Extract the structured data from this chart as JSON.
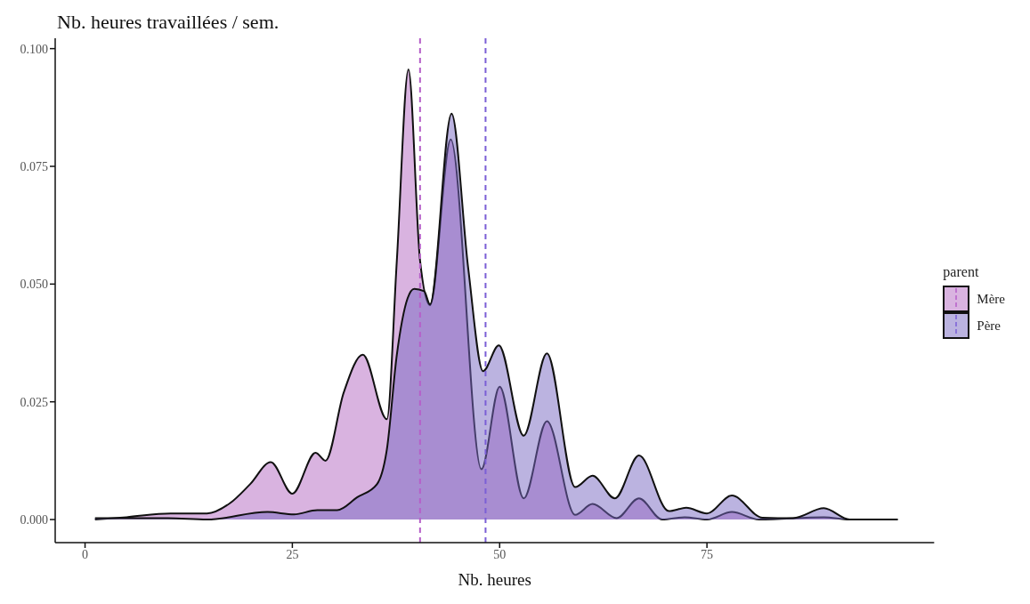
{
  "chart_data": {
    "type": "area",
    "title": "Nb. heures travaillées / sem.",
    "xlabel": "Nb. heures",
    "legend_title": "parent",
    "legend": "right",
    "xlim": [
      -3.6,
      102.4
    ],
    "xticks": [
      0,
      25,
      50,
      75
    ],
    "ylim": [
      -0.0049,
      0.1022
    ],
    "yticks": [
      {
        "value": 0,
        "label": "0.000"
      },
      {
        "value": 0.025,
        "label": "0.025"
      },
      {
        "value": 0.05,
        "label": "0.050"
      },
      {
        "value": 0.075,
        "label": "0.075"
      },
      {
        "value": 0.1,
        "label": "0.100"
      }
    ],
    "series": [
      {
        "name": "Mère",
        "color": "#b367c1",
        "x": [
          1.2,
          5,
          10.3,
          14.7,
          17.5,
          19.9,
          22.4,
          25,
          27.8,
          29,
          31.2,
          33.5,
          36.4,
          37.6,
          39,
          40.4,
          41.6,
          44.1,
          47.8,
          50,
          52.9,
          55.7,
          59.1,
          61.2,
          64.1,
          66.8,
          69.6,
          72.3,
          75,
          78,
          81.3,
          89.1,
          92.2,
          98
        ],
        "values": [
          0,
          0.0005,
          0.0013,
          0.0013,
          0.0035,
          0.0075,
          0.0122,
          0.0055,
          0.0142,
          0.0125,
          0.027,
          0.035,
          0.0213,
          0.055,
          0.0956,
          0.055,
          0.0455,
          0.0807,
          0.0107,
          0.0282,
          0.0045,
          0.0209,
          0.001,
          0.0033,
          0.0003,
          0.0045,
          0,
          0.0005,
          0,
          0.0016,
          0,
          0.0005,
          0,
          0
        ]
      },
      {
        "name": "Père",
        "color": "#7767c1",
        "x": [
          1.2,
          10,
          14.7,
          22,
          25.2,
          28,
          30.4,
          32.8,
          35.2,
          36.4,
          37.6,
          38.9,
          39.7,
          40.9,
          41.6,
          44.2,
          46.2,
          48,
          49.9,
          52.9,
          55.7,
          59.1,
          61.2,
          63.9,
          66.8,
          70.4,
          72.5,
          75,
          78,
          81.7,
          85.4,
          89.1,
          92.2,
          98
        ],
        "values": [
          0.0003,
          0.0003,
          0,
          0.0016,
          0.0011,
          0.002,
          0.002,
          0.0047,
          0.0075,
          0.0149,
          0.035,
          0.047,
          0.049,
          0.0485,
          0.0457,
          0.0862,
          0.0535,
          0.0315,
          0.037,
          0.0178,
          0.0353,
          0.0069,
          0.0093,
          0.0045,
          0.0136,
          0.0018,
          0.0025,
          0.0013,
          0.0051,
          0.0004,
          0.0003,
          0.0024,
          0,
          0
        ]
      }
    ],
    "ref_lines": [
      {
        "axis": "x",
        "value": 40.4,
        "color": "#b65fc9",
        "line_style": "dashed"
      },
      {
        "axis": "x",
        "value": 48.3,
        "color": "#7b5fd6",
        "line_style": "dashed"
      }
    ]
  }
}
